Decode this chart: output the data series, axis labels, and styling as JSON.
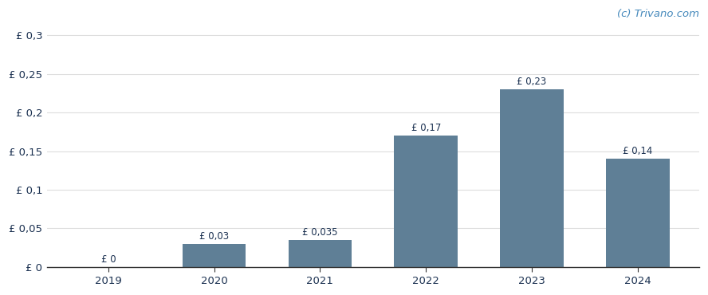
{
  "categories": [
    "2019",
    "2020",
    "2021",
    "2022",
    "2023",
    "2024"
  ],
  "values": [
    0.0,
    0.03,
    0.035,
    0.17,
    0.23,
    0.14
  ],
  "bar_labels": [
    "£ 0",
    "£ 0,03",
    "£ 0,035",
    "£ 0,17",
    "£ 0,23",
    "£ 0,14"
  ],
  "bar_color": "#5f7f96",
  "background_color": "#ffffff",
  "ylim": [
    0,
    0.315
  ],
  "yticks": [
    0.0,
    0.05,
    0.1,
    0.15,
    0.2,
    0.25,
    0.3
  ],
  "ytick_labels": [
    "£ 0",
    "£ 0,05",
    "£ 0,1",
    "£ 0,15",
    "£ 0,2",
    "£ 0,25",
    "£ 0,3"
  ],
  "watermark": "(c) Trivano.com",
  "watermark_color": "#4488bb",
  "grid_color": "#dddddd",
  "label_color": "#1a3050",
  "tick_color": "#1a3050",
  "label_fontsize": 8.5,
  "tick_fontsize": 9.5,
  "watermark_fontsize": 9.5,
  "bar_width": 0.6,
  "bar_label_offsets": [
    0.003,
    0.003,
    0.003,
    0.003,
    0.003,
    0.003
  ]
}
